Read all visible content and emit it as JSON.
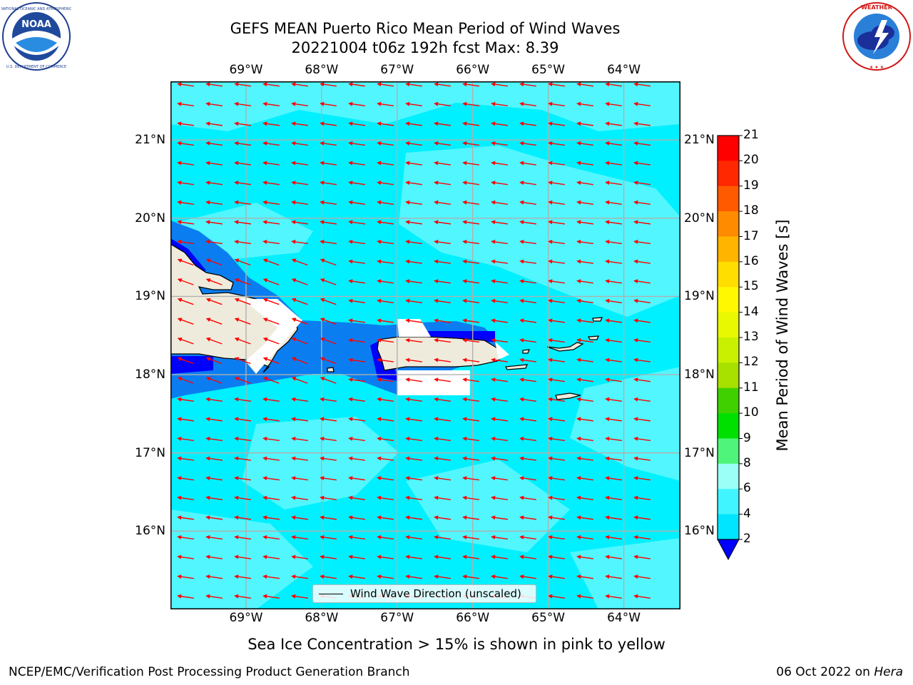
{
  "header": {
    "title_line1": "GEFS MEAN Puerto Rico Mean Period of Wind Waves",
    "title_line2": "20221004 t06z 192h fcst   Max: 8.39"
  },
  "logos": {
    "left": {
      "name": "NOAA",
      "ring_text": "NATIONAL OCEANIC AND ATMOSPHERIC ADMINISTRATION · U.S. DEPARTMENT OF COMMERCE"
    },
    "right": {
      "name": "NATIONAL WEATHER SERVICE"
    }
  },
  "map": {
    "lon_labels": [
      "69°W",
      "68°W",
      "67°W",
      "66°W",
      "65°W",
      "64°W"
    ],
    "lat_labels": [
      "21°N",
      "20°N",
      "19°N",
      "18°N",
      "17°N",
      "16°N"
    ],
    "lon_range": [
      -70.0,
      -63.25
    ],
    "lat_range": [
      15.0,
      21.75
    ],
    "grid": true,
    "arrow_color": "#ff0000",
    "land_color": "#efebdc",
    "dominant_period_band": "4-6",
    "legend": {
      "label": "Wind Wave Direction (unscaled)",
      "position": "lower-center"
    }
  },
  "colorbar": {
    "label": "Mean Period of Wind Waves [s]",
    "ticks": [
      "2",
      "4",
      "6",
      "8",
      "9",
      "10",
      "11",
      "12",
      "13",
      "14",
      "15",
      "16",
      "17",
      "18",
      "19",
      "20",
      "21"
    ],
    "colors": [
      "#0a7ef0",
      "#00e5ff",
      "#40f5ff",
      "#9cfff7",
      "#4ef57a",
      "#00e000",
      "#40d000",
      "#a8e000",
      "#c8f000",
      "#e8f800",
      "#fff800",
      "#ffde00",
      "#ffb400",
      "#ff8c00",
      "#ff5a00",
      "#ff2800",
      "#ff0000"
    ],
    "under_color": "#0000ff"
  },
  "footer": {
    "note": "Sea Ice Concentration > 15% is shown in pink to yellow",
    "credit": "NCEP/EMC/Verification Post Processing Product Generation Branch",
    "date": "06 Oct 2022 on ",
    "machine": "Hera"
  }
}
